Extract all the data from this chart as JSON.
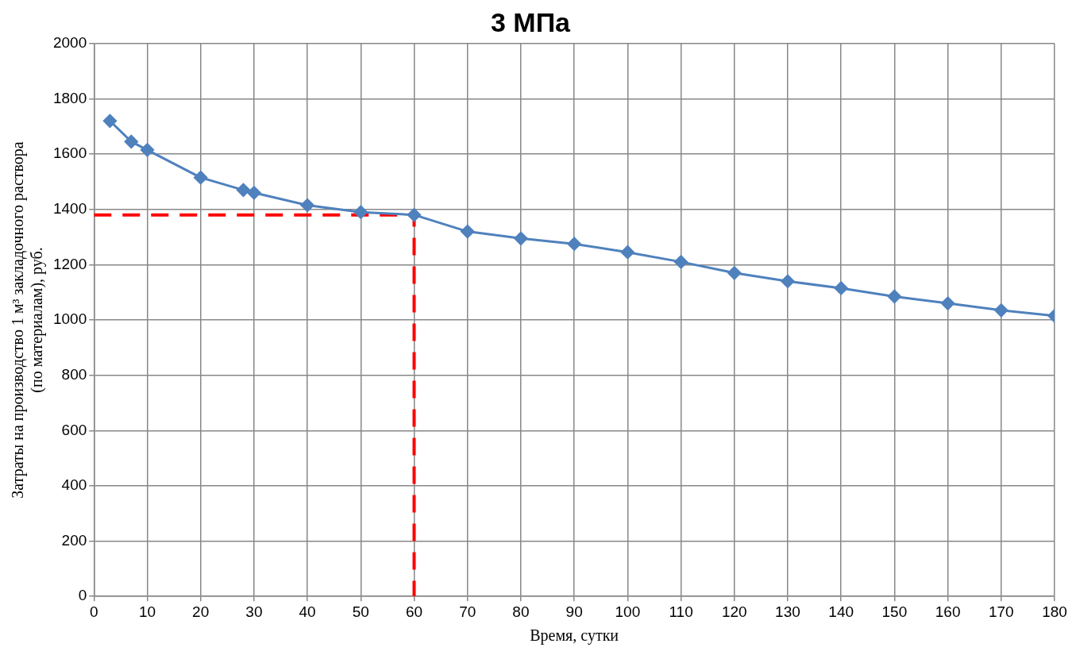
{
  "chart_data": {
    "type": "line",
    "title": "3 МПа",
    "xlabel": "Время, сутки",
    "ylabel": "Затраты на производство 1 м³ закладочного раствора\n(по материалам), руб.",
    "xlim": [
      0,
      180
    ],
    "xticks": [
      0,
      10,
      20,
      30,
      40,
      50,
      60,
      70,
      80,
      90,
      100,
      110,
      120,
      130,
      140,
      150,
      160,
      170,
      180
    ],
    "ylim": [
      0,
      2000
    ],
    "yticks": [
      0,
      200,
      400,
      600,
      800,
      1000,
      1200,
      1400,
      1600,
      1800,
      2000
    ],
    "grid": true,
    "legend": false,
    "series": [
      {
        "color": "#4f81bd",
        "marker": "diamond",
        "line_style": "solid",
        "x": [
          3,
          7,
          10,
          20,
          28,
          30,
          40,
          50,
          60,
          70,
          80,
          90,
          100,
          110,
          120,
          130,
          140,
          150,
          160,
          170,
          180
        ],
        "values": [
          1720,
          1645,
          1615,
          1515,
          1470,
          1460,
          1415,
          1390,
          1380,
          1320,
          1295,
          1275,
          1245,
          1210,
          1170,
          1140,
          1115,
          1085,
          1060,
          1035,
          1015
        ]
      },
      {
        "color": "#ff0000",
        "marker": "none",
        "line_style": "dashed",
        "x": [
          0,
          60,
          60
        ],
        "values": [
          1380,
          1380,
          0
        ]
      }
    ]
  }
}
